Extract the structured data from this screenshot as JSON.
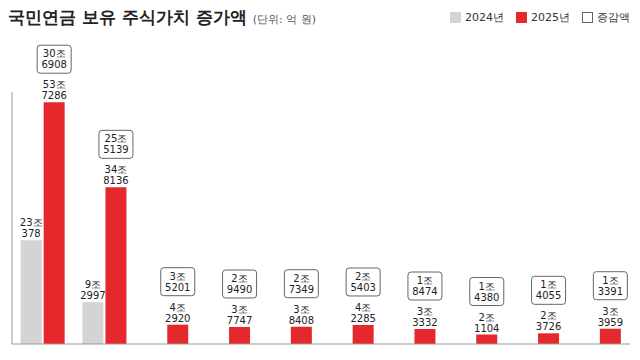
{
  "chart_data": {
    "type": "bar",
    "title": "국민연금 보유 주식가치 증가액",
    "subtitle": "(단위: 억 원)",
    "categories": [
      null,
      null,
      null,
      null,
      null,
      null,
      null,
      null,
      null,
      null
    ],
    "series": [
      {
        "name": "2024년",
        "type": "bar",
        "color": "#d4d4d4",
        "values": [
          230378,
          92997,
          null,
          null,
          null,
          null,
          null,
          null,
          null,
          null
        ],
        "value_labels": [
          "23조 378",
          "9조 2997",
          null,
          null,
          null,
          null,
          null,
          null,
          null,
          null
        ]
      },
      {
        "name": "2025년",
        "type": "bar",
        "color": "#e5282c",
        "values": [
          537286,
          348136,
          42920,
          37747,
          38408,
          42285,
          33332,
          21104,
          23726,
          33959
        ],
        "value_labels": [
          "53조 7286",
          "34조 8136",
          "4조 2920",
          "3조 7747",
          "3조 8408",
          "4조 2285",
          "3조 3332",
          "2조 1104",
          "2조 3726",
          "3조 3959"
        ]
      },
      {
        "name": "증감액",
        "type": "label",
        "color": "#ffffff",
        "values": [
          306908,
          255139,
          35201,
          29490,
          27349,
          25403,
          18474,
          14380,
          14055,
          13391
        ],
        "value_labels": [
          "30조 6908",
          "25조 5139",
          "3조 5201",
          "2조 9490",
          "2조 7349",
          "2조 5403",
          "1조 8474",
          "1조 4380",
          "1조 4055",
          "1조 3391"
        ]
      }
    ],
    "ylim": [
      0,
      560000
    ],
    "yticks": [],
    "grid": false,
    "tick_labels": false,
    "data_labels": true,
    "legend": "top"
  }
}
